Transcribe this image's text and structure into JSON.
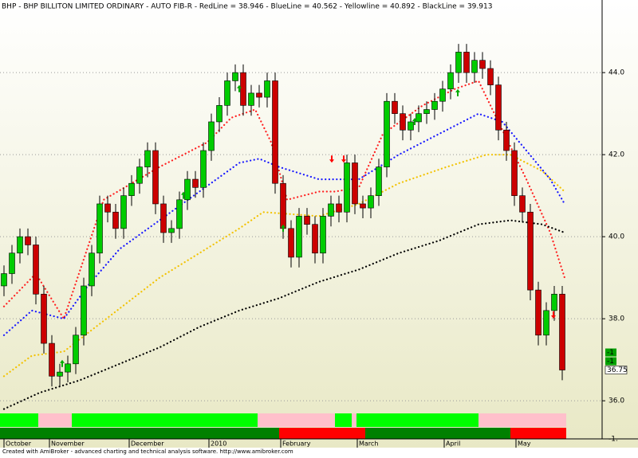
{
  "chart_data": {
    "type": "candlestick",
    "title": "BHP - BHP BILLITON LIMITED ORDINARY - AUTO FIB-R - RedLine = 38.946 - BlueLine = 40.562 - Yellowline = 40.892 - BlackLine = 39.913",
    "footer": "Created with AmiBroker - advanced charting and technical analysis software. http://www.amibroker.com",
    "xlim": [
      -0.5,
      75
    ],
    "ylim": [
      35.77,
      45.77
    ],
    "yticks": [
      {
        "value": 44,
        "label": "44.0"
      },
      {
        "value": 42,
        "label": "42.0"
      },
      {
        "value": 40,
        "label": "40.0"
      },
      {
        "value": 38,
        "label": "38.0"
      },
      {
        "value": 36,
        "label": "36.0"
      }
    ],
    "xticks": [
      {
        "value": 0,
        "label": "October"
      },
      {
        "value": 5.7,
        "label": "November"
      },
      {
        "value": 15.7,
        "label": "December"
      },
      {
        "value": 25.7,
        "label": "2010"
      },
      {
        "value": 34.7,
        "label": "February"
      },
      {
        "value": 44.3,
        "label": "March"
      },
      {
        "value": 55.2,
        "label": "April"
      },
      {
        "value": 64.2,
        "label": "May"
      }
    ],
    "grid": true,
    "up_color": "#00cc00",
    "down_color": "#cc0000",
    "open": [
      38.8,
      39.1,
      39.6,
      40.0,
      39.8,
      38.6,
      37.4,
      36.6,
      36.7,
      36.9,
      37.6,
      38.8,
      39.6,
      40.8,
      40.6,
      40.2,
      41.0,
      41.3,
      41.7,
      42.1,
      40.8,
      40.1,
      40.2,
      40.9,
      41.4,
      41.2,
      42.1,
      42.8,
      43.2,
      43.8,
      44.0,
      43.2,
      43.5,
      43.4,
      43.8,
      41.3,
      40.2,
      39.5,
      40.5,
      40.3,
      39.6,
      40.5,
      40.8,
      40.6,
      41.8,
      40.8,
      40.7,
      41.0,
      41.7,
      43.3,
      43.0,
      42.6,
      42.8,
      43.0,
      43.1,
      43.3,
      43.6,
      44.0,
      44.5,
      44.0,
      44.3,
      44.1,
      43.7,
      42.6,
      42.1,
      41.0,
      40.6,
      38.7,
      37.6,
      38.2,
      38.6
    ],
    "high": [
      39.3,
      39.8,
      40.2,
      40.2,
      40.0,
      38.8,
      37.6,
      36.9,
      37.1,
      37.8,
      39.0,
      39.8,
      41.0,
      41.0,
      40.8,
      41.2,
      41.5,
      41.9,
      42.3,
      42.3,
      41.0,
      40.4,
      41.1,
      41.6,
      41.6,
      42.3,
      43.0,
      43.4,
      44.0,
      44.2,
      44.2,
      43.7,
      43.7,
      44.0,
      44.0,
      41.5,
      40.4,
      40.7,
      40.7,
      40.5,
      40.7,
      41.0,
      41.0,
      42.0,
      42.0,
      41.0,
      41.2,
      41.9,
      43.5,
      43.5,
      43.2,
      43.0,
      43.2,
      43.3,
      43.5,
      43.8,
      44.2,
      44.7,
      44.7,
      44.5,
      44.5,
      44.3,
      43.9,
      42.8,
      42.3,
      41.2,
      40.8,
      38.9,
      38.4,
      38.8,
      38.8
    ],
    "low": [
      38.55,
      38.85,
      39.35,
      39.55,
      38.35,
      37.15,
      36.35,
      36.35,
      36.45,
      36.65,
      37.35,
      38.55,
      39.35,
      40.35,
      39.95,
      39.95,
      40.75,
      41.05,
      41.45,
      40.55,
      39.85,
      39.85,
      39.95,
      40.65,
      40.95,
      40.95,
      41.85,
      42.55,
      42.95,
      43.55,
      42.95,
      42.95,
      43.15,
      43.15,
      41.05,
      39.95,
      39.25,
      39.25,
      40.05,
      39.35,
      39.35,
      40.25,
      40.35,
      40.35,
      40.55,
      40.45,
      40.45,
      40.75,
      41.45,
      42.75,
      42.35,
      42.35,
      42.55,
      42.75,
      42.85,
      43.05,
      43.35,
      43.75,
      43.75,
      43.75,
      43.85,
      43.45,
      42.35,
      41.85,
      40.75,
      40.35,
      38.45,
      37.35,
      37.35,
      37.95,
      36.5
    ],
    "close": [
      39.1,
      39.6,
      40.0,
      39.8,
      38.6,
      37.4,
      36.6,
      36.7,
      36.9,
      37.6,
      38.8,
      39.6,
      40.8,
      40.6,
      40.2,
      41.0,
      41.3,
      41.7,
      42.1,
      40.8,
      40.1,
      40.2,
      40.9,
      41.4,
      41.2,
      42.1,
      42.8,
      43.2,
      43.8,
      44.0,
      43.2,
      43.5,
      43.4,
      43.8,
      41.3,
      40.2,
      39.5,
      40.5,
      40.3,
      39.6,
      40.5,
      40.8,
      40.6,
      41.8,
      40.8,
      40.7,
      41.0,
      41.7,
      43.3,
      43.0,
      42.6,
      42.8,
      43.0,
      43.1,
      43.3,
      43.6,
      44.0,
      44.5,
      44.0,
      44.3,
      44.1,
      43.7,
      42.6,
      42.1,
      41.0,
      40.6,
      38.7,
      37.6,
      38.2,
      38.6,
      36.75
    ],
    "last_label": "36.75",
    "series": [
      {
        "color": "#ff2020",
        "x": [
          0,
          4,
          7.5,
          12.5,
          19.5,
          25.5,
          28.5,
          31.5,
          33.5,
          35.5,
          39.5,
          41.5,
          44.5,
          47.5,
          52.5,
          56.5,
          59.5,
          62.5,
          65.5,
          68.5,
          70.3
        ],
        "values": [
          38.3,
          39.1,
          38.0,
          40.9,
          41.7,
          42.3,
          42.9,
          43.1,
          42.3,
          40.9,
          41.1,
          41.1,
          41.2,
          42.5,
          43.2,
          43.6,
          43.8,
          42.6,
          41.4,
          40.1,
          39.0
        ]
      },
      {
        "color": "#1a1aff",
        "x": [
          0,
          3.5,
          7.5,
          10.5,
          14.5,
          19.5,
          24.5,
          29.5,
          32,
          34.5,
          39.5,
          44.5,
          49.5,
          54.5,
          59.5,
          62.5,
          65.5,
          68.5,
          70.3
        ],
        "values": [
          37.6,
          38.2,
          38.0,
          38.8,
          39.7,
          40.4,
          41.1,
          41.8,
          41.9,
          41.7,
          41.4,
          41.4,
          42.0,
          42.5,
          43.0,
          42.8,
          42.1,
          41.4,
          40.8
        ]
      },
      {
        "color": "#f2c200",
        "x": [
          0,
          3.5,
          7.5,
          11.5,
          15.5,
          19.5,
          24.5,
          29.5,
          32.5,
          39.5,
          44.5,
          49.5,
          55.5,
          60.5,
          63.5,
          67.5,
          70.3
        ],
        "values": [
          36.6,
          37.1,
          37.2,
          37.8,
          38.4,
          39.0,
          39.6,
          40.2,
          40.6,
          40.5,
          40.8,
          41.3,
          41.7,
          42.0,
          42.0,
          41.6,
          41.1
        ]
      },
      {
        "color": "#000000",
        "x": [
          0,
          4.5,
          9.5,
          14.5,
          19.5,
          24.5,
          29.5,
          34.5,
          39.5,
          44.5,
          49.5,
          54.5,
          59.5,
          63.5,
          67.5,
          70.3
        ],
        "values": [
          35.8,
          36.2,
          36.5,
          36.9,
          37.3,
          37.8,
          38.2,
          38.5,
          38.9,
          39.2,
          39.6,
          39.9,
          40.3,
          40.4,
          40.3,
          40.1
        ]
      }
    ],
    "signals": [
      {
        "color": "#00aa00",
        "direction": "up",
        "x": [
          7.3,
          22.5,
          29.5,
          35,
          51.5,
          56.9
        ],
        "values": [
          36.9,
          41.0,
          43.6,
          40.2,
          42.8,
          43.5
        ]
      },
      {
        "color": "#ff0000",
        "direction": "down",
        "x": [
          41.1,
          42.6,
          68.9
        ],
        "values": [
          41.9,
          41.9,
          38.1
        ]
      }
    ],
    "ribbons": [
      {
        "label": "-1",
        "segments": [
          {
            "start": -0.5,
            "end": 4.3,
            "color": "#00ff00"
          },
          {
            "start": 4.3,
            "end": 8.5,
            "color": "#ffc0cb"
          },
          {
            "start": 8.5,
            "end": 31.8,
            "color": "#00ff00"
          },
          {
            "start": 31.8,
            "end": 41.5,
            "color": "#ffc0cb"
          },
          {
            "start": 41.5,
            "end": 43.6,
            "color": "#00ff00"
          },
          {
            "start": 43.6,
            "end": 44.2,
            "color": "#ffc0cb"
          },
          {
            "start": 44.2,
            "end": 59.5,
            "color": "#00ff00"
          },
          {
            "start": 59.5,
            "end": 70.5,
            "color": "#ffc0cb"
          }
        ]
      },
      {
        "label": "-1",
        "segments": [
          {
            "start": -0.5,
            "end": 34.5,
            "color": "#008000"
          },
          {
            "start": 34.5,
            "end": 45.3,
            "color": "#ff0000"
          },
          {
            "start": 45.3,
            "end": 63.5,
            "color": "#008000"
          },
          {
            "start": 63.5,
            "end": 70.5,
            "color": "#ff0000"
          }
        ]
      }
    ],
    "ribbon_axis_label": "-1."
  }
}
